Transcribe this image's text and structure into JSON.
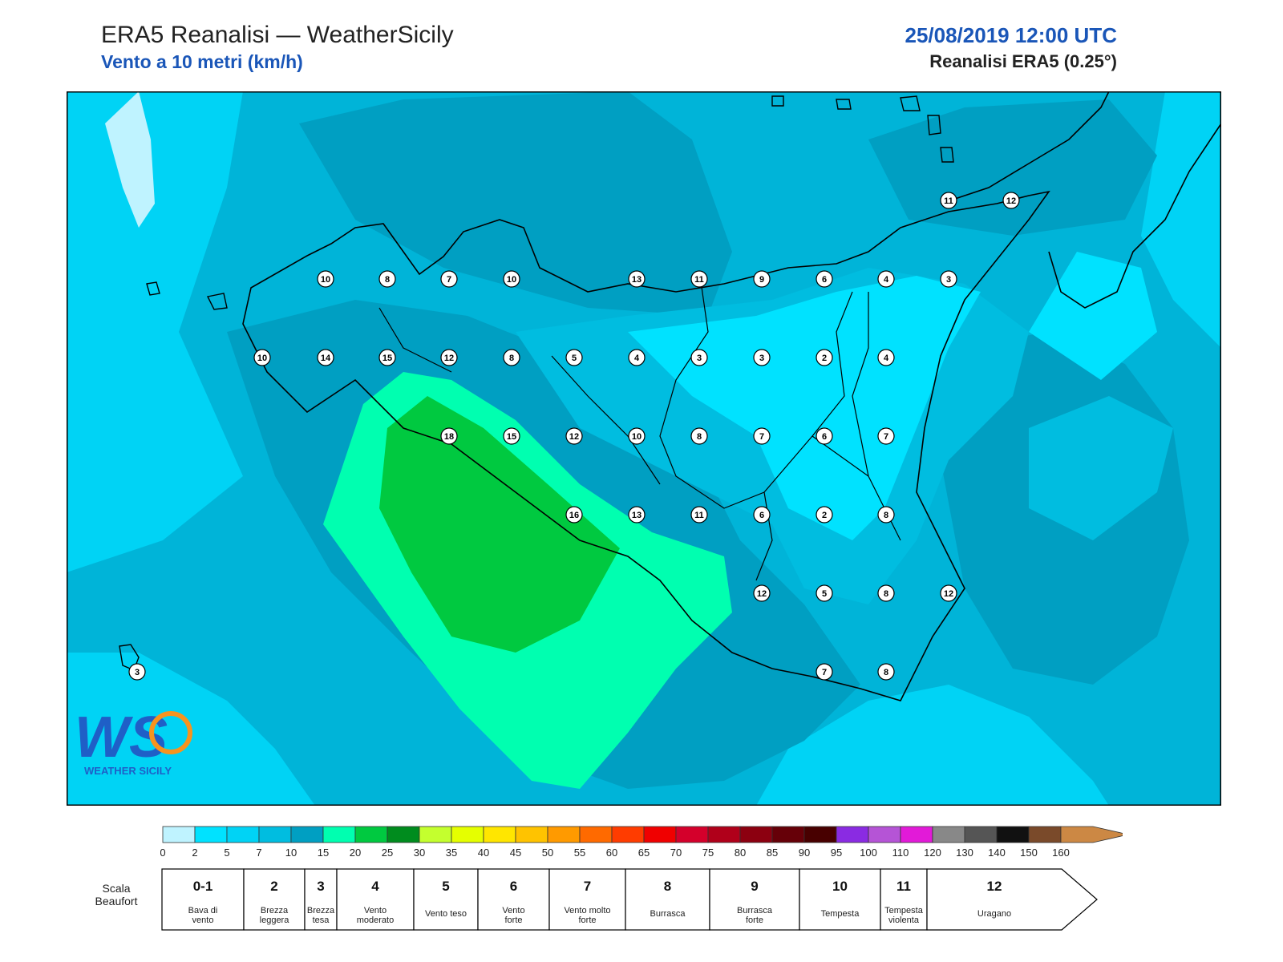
{
  "header": {
    "title": "ERA5 Reanalisi — WeatherSicily",
    "subtitle": "Vento a 10 metri (km/h)",
    "datetime": "25/08/2019 12:00 UTC",
    "model": "Reanalisi ERA5 (0.25°)"
  },
  "map": {
    "variable": "wind speed at 10 m",
    "units": "km/h",
    "region": "Sicily",
    "station_values": [
      10,
      8,
      7,
      10,
      13,
      11,
      9,
      6,
      4,
      3,
      11,
      12,
      10,
      14,
      15,
      12,
      8,
      5,
      4,
      3,
      3,
      2,
      4,
      18,
      15,
      12,
      10,
      8,
      7,
      6,
      7,
      16,
      13,
      11,
      6,
      2,
      8,
      12,
      5,
      8,
      12,
      7,
      8,
      3
    ]
  },
  "logo": {
    "letters": "WS",
    "text": "WEATHER SICILY"
  },
  "colorbar": {
    "ticks": [
      "0",
      "2",
      "5",
      "7",
      "10",
      "15",
      "20",
      "25",
      "30",
      "35",
      "40",
      "45",
      "50",
      "55",
      "60",
      "65",
      "70",
      "75",
      "80",
      "85",
      "90",
      "95",
      "100",
      "110",
      "120",
      "130",
      "140",
      "150",
      "160"
    ],
    "colors": [
      "#bff3ff",
      "#00e2ff",
      "#00d3f5",
      "#00bde0",
      "#009fc2",
      "#00ffb0",
      "#00c940",
      "#008c1e",
      "#c4ff2e",
      "#e5ff00",
      "#ffe600",
      "#ffc300",
      "#ff9a00",
      "#ff6a00",
      "#ff3c00",
      "#f00000",
      "#d4002b",
      "#b0001a",
      "#8c0010",
      "#660008",
      "#480000",
      "#8a2be2",
      "#b554d6",
      "#e21ad8",
      "#888888",
      "#555555",
      "#111111",
      "#7a4a2a",
      "#cc8844"
    ]
  },
  "beaufort": {
    "label_line1": "Scala",
    "label_line2": "Beaufort",
    "levels": [
      {
        "num": "0-1",
        "desc1": "Bava di",
        "desc2": "vento"
      },
      {
        "num": "2",
        "desc1": "Brezza",
        "desc2": "leggera"
      },
      {
        "num": "3",
        "desc1": "Brezza",
        "desc2": "tesa"
      },
      {
        "num": "4",
        "desc1": "Vento",
        "desc2": "moderato"
      },
      {
        "num": "5",
        "desc1": "Vento teso",
        "desc2": ""
      },
      {
        "num": "6",
        "desc1": "Vento",
        "desc2": "forte"
      },
      {
        "num": "7",
        "desc1": "Vento molto",
        "desc2": "forte"
      },
      {
        "num": "8",
        "desc1": "Burrasca",
        "desc2": ""
      },
      {
        "num": "9",
        "desc1": "Burrasca",
        "desc2": "forte"
      },
      {
        "num": "10",
        "desc1": "Tempesta",
        "desc2": ""
      },
      {
        "num": "11",
        "desc1": "Tempesta",
        "desc2": "violenta"
      },
      {
        "num": "12",
        "desc1": "Uragano",
        "desc2": ""
      }
    ]
  }
}
